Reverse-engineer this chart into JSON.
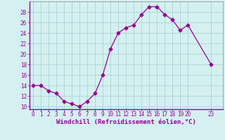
{
  "x": [
    0,
    1,
    2,
    3,
    4,
    5,
    6,
    7,
    8,
    9,
    10,
    11,
    12,
    13,
    14,
    15,
    16,
    17,
    18,
    19,
    20,
    23
  ],
  "y": [
    14,
    14,
    13,
    12.5,
    11,
    10.5,
    10,
    11,
    12.5,
    16,
    21,
    24,
    25,
    25.5,
    27.5,
    29,
    29,
    27.5,
    26.5,
    24.5,
    25.5,
    18
  ],
  "line_color": "#990099",
  "marker": "D",
  "marker_size": 2.5,
  "bg_color": "#d4f0f0",
  "grid_color": "#b0d8d8",
  "xlabel": "Windchill (Refroidissement éolien,°C)",
  "xlabel_color": "#990099",
  "xlabel_fontsize": 6.5,
  "tick_color": "#990099",
  "tick_fontsize": 5.5,
  "yticks": [
    10,
    12,
    14,
    16,
    18,
    20,
    22,
    24,
    26,
    28
  ],
  "xticks": [
    0,
    1,
    2,
    3,
    4,
    5,
    6,
    7,
    8,
    9,
    10,
    11,
    12,
    13,
    14,
    15,
    16,
    17,
    18,
    19,
    20,
    23
  ],
  "ylim": [
    9.5,
    30
  ],
  "xlim": [
    -0.5,
    24.5
  ]
}
